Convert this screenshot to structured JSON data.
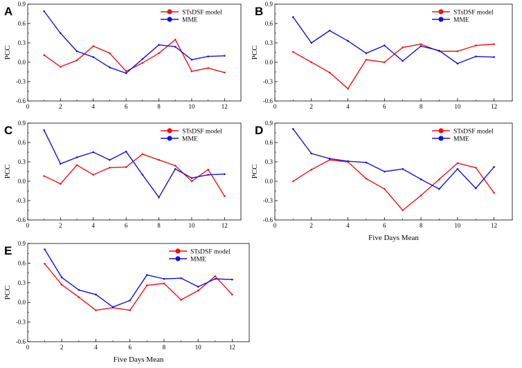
{
  "colors": {
    "stsdsf": "#ee1111",
    "mme": "#1111dd",
    "axis": "#000000"
  },
  "chart_data": [
    {
      "type": "line",
      "panel": "A",
      "ylabel": "PCC",
      "xlabel": "",
      "ylim": [
        -0.6,
        0.9
      ],
      "xlim": [
        0,
        13
      ],
      "yticks": [
        "-0.6",
        "-0.3",
        "0.0",
        "0.3",
        "0.6",
        "0.9"
      ],
      "xticks": [
        "0",
        "2",
        "4",
        "6",
        "8",
        "10",
        "12"
      ],
      "series": [
        {
          "name": "STsDSF model",
          "x": [
            1,
            2,
            3,
            4,
            5,
            6,
            7,
            8,
            9,
            10,
            11,
            12
          ],
          "values": [
            0.11,
            -0.07,
            0.03,
            0.25,
            0.14,
            -0.14,
            -0.01,
            0.14,
            0.35,
            -0.14,
            -0.09,
            -0.16
          ]
        },
        {
          "name": "MME",
          "x": [
            1,
            2,
            3,
            4,
            5,
            6,
            7,
            8,
            9,
            10,
            11,
            12
          ],
          "values": [
            0.79,
            0.45,
            0.17,
            0.08,
            -0.08,
            -0.17,
            0.05,
            0.27,
            0.24,
            0.04,
            0.09,
            0.1
          ]
        }
      ]
    },
    {
      "type": "line",
      "panel": "B",
      "ylabel": "PCC",
      "xlabel": "",
      "ylim": [
        -0.6,
        0.9
      ],
      "xlim": [
        0,
        13
      ],
      "yticks": [
        "-0.6",
        "-0.3",
        "0.0",
        "0.3",
        "0.6",
        "0.9"
      ],
      "xticks": [
        "0",
        "2",
        "4",
        "6",
        "8",
        "10",
        "12"
      ],
      "series": [
        {
          "name": "STsDSF model",
          "x": [
            1,
            2,
            3,
            4,
            5,
            6,
            7,
            8,
            9,
            10,
            11,
            12
          ],
          "values": [
            0.16,
            0.0,
            -0.16,
            -0.41,
            0.04,
            0.0,
            0.23,
            0.28,
            0.17,
            0.17,
            0.26,
            0.28
          ]
        },
        {
          "name": "MME",
          "x": [
            1,
            2,
            3,
            4,
            5,
            6,
            7,
            8,
            9,
            10,
            11,
            12
          ],
          "values": [
            0.7,
            0.3,
            0.49,
            0.33,
            0.14,
            0.26,
            0.02,
            0.25,
            0.18,
            -0.02,
            0.09,
            0.08
          ]
        }
      ]
    },
    {
      "type": "line",
      "panel": "C",
      "ylabel": "PCC",
      "xlabel": "",
      "ylim": [
        -0.6,
        0.9
      ],
      "xlim": [
        0,
        13
      ],
      "yticks": [
        "-0.6",
        "-0.3",
        "0.0",
        "0.3",
        "0.6",
        "0.9"
      ],
      "xticks": [
        "0",
        "2",
        "4",
        "6",
        "8",
        "10",
        "12"
      ],
      "series": [
        {
          "name": "STsDSF model",
          "x": [
            1,
            2,
            3,
            4,
            5,
            6,
            7,
            8,
            9,
            10,
            11,
            12
          ],
          "values": [
            0.08,
            -0.04,
            0.25,
            0.1,
            0.21,
            0.22,
            0.42,
            0.33,
            0.24,
            0.0,
            0.18,
            -0.23
          ]
        },
        {
          "name": "MME",
          "x": [
            1,
            2,
            3,
            4,
            5,
            6,
            7,
            8,
            9,
            10,
            11,
            12
          ],
          "values": [
            0.79,
            0.27,
            0.37,
            0.45,
            0.33,
            0.46,
            0.1,
            -0.25,
            0.19,
            0.05,
            0.1,
            0.11
          ]
        }
      ]
    },
    {
      "type": "line",
      "panel": "D",
      "ylabel": "PCC",
      "xlabel": "Five Days Mean",
      "ylim": [
        -0.6,
        0.9
      ],
      "xlim": [
        0,
        13
      ],
      "yticks": [
        "-0.6",
        "-0.3",
        "0.0",
        "0.3",
        "0.6",
        "0.9"
      ],
      "xticks": [
        "0",
        "2",
        "4",
        "6",
        "8",
        "10",
        "12"
      ],
      "series": [
        {
          "name": "STsDSF model",
          "x": [
            1,
            2,
            3,
            4,
            5,
            6,
            7,
            8,
            9,
            10,
            11,
            12
          ],
          "values": [
            0.0,
            0.18,
            0.33,
            0.3,
            0.04,
            -0.12,
            -0.45,
            -0.22,
            0.03,
            0.28,
            0.21,
            -0.18
          ]
        },
        {
          "name": "MME",
          "x": [
            1,
            2,
            3,
            4,
            5,
            6,
            7,
            8,
            9,
            10,
            11,
            12
          ],
          "values": [
            0.81,
            0.43,
            0.35,
            0.31,
            0.29,
            0.15,
            0.19,
            0.03,
            -0.12,
            0.19,
            -0.11,
            0.22
          ]
        }
      ]
    },
    {
      "type": "line",
      "panel": "E",
      "ylabel": "PCC",
      "xlabel": "Five Days Mean",
      "ylim": [
        -0.6,
        0.9
      ],
      "xlim": [
        0,
        13
      ],
      "yticks": [
        "-0.6",
        "-0.3",
        "0.0",
        "0.3",
        "0.6",
        "0.9"
      ],
      "xticks": [
        "0",
        "2",
        "4",
        "6",
        "8",
        "10",
        "12"
      ],
      "series": [
        {
          "name": "STsDSF model",
          "x": [
            1,
            2,
            3,
            4,
            5,
            6,
            7,
            8,
            9,
            10,
            11,
            12
          ],
          "values": [
            0.59,
            0.27,
            0.08,
            -0.12,
            -0.08,
            -0.12,
            0.26,
            0.29,
            0.04,
            0.18,
            0.4,
            0.12
          ]
        },
        {
          "name": "MME",
          "x": [
            1,
            2,
            3,
            4,
            5,
            6,
            7,
            8,
            9,
            10,
            11,
            12
          ],
          "values": [
            0.81,
            0.38,
            0.19,
            0.12,
            -0.07,
            0.03,
            0.42,
            0.36,
            0.37,
            0.24,
            0.36,
            0.35
          ]
        }
      ]
    }
  ]
}
